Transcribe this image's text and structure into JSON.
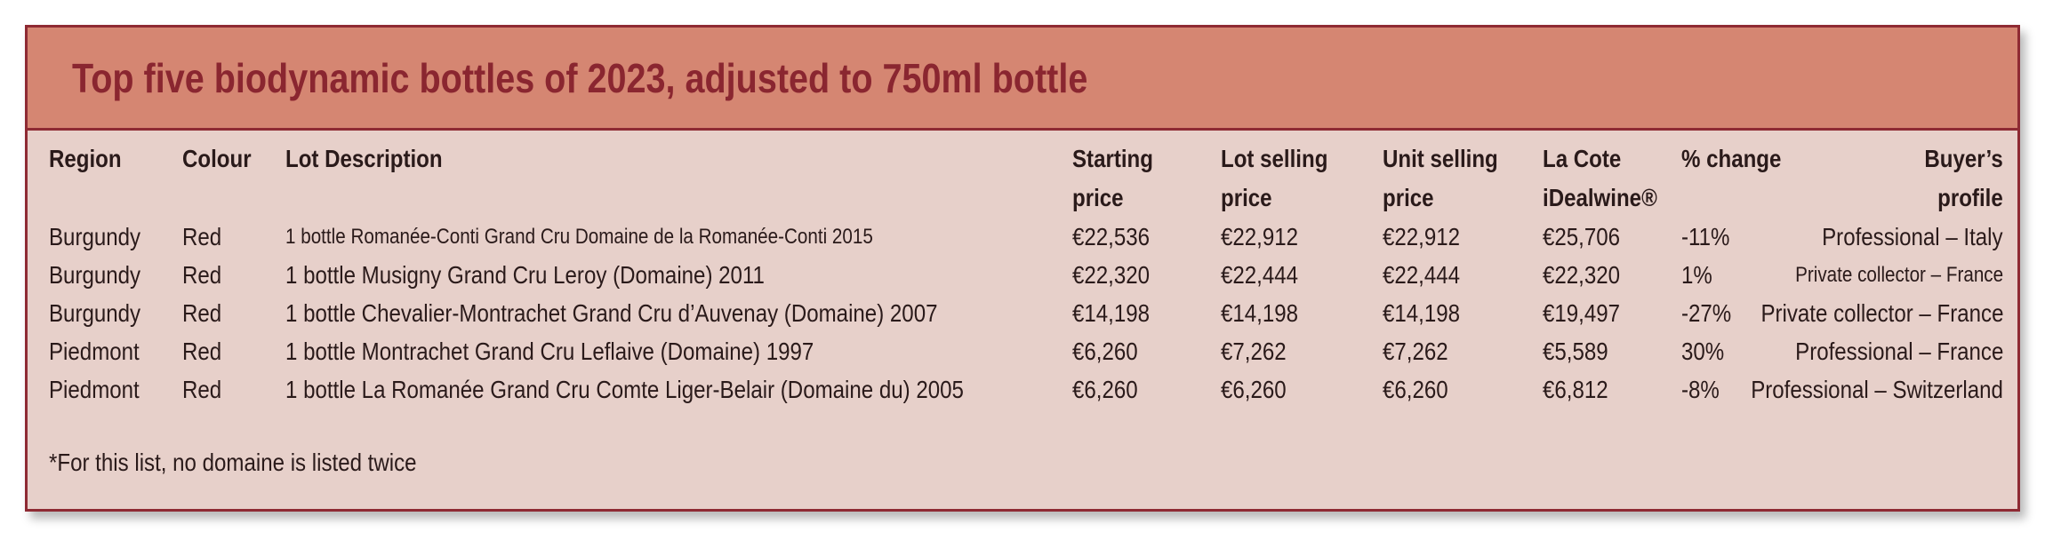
{
  "title": "Top five biodynamic bottles of 2023, adjusted to 750ml bottle",
  "colors": {
    "panel_bg": "#e7d0ca",
    "header_bg": "#d58672",
    "border": "#8e2a33",
    "title_text": "#8a2630"
  },
  "table": {
    "headers": {
      "region": "Region",
      "colour": "Colour",
      "lot_description": "Lot Description",
      "starting_price_1": "Starting",
      "starting_price_2": "price",
      "lot_selling_price_1": "Lot selling",
      "lot_selling_price_2": "price",
      "unit_selling_price_1": "Unit selling",
      "unit_selling_price_2": "price",
      "la_cote_1": "La Cote",
      "la_cote_2": "iDealwine®",
      "pct_change": "% change",
      "buyer_profile_1": "Buyer’s",
      "buyer_profile_2": "profile"
    },
    "rows": [
      {
        "region": "Burgundy",
        "colour": "Red",
        "lot_description": "1 bottle Romanée-Conti Grand Cru Domaine de la Romanée-Conti 2015",
        "starting_price": "€22,536",
        "lot_selling_price": "€22,912",
        "unit_selling_price": "€22,912",
        "la_cote": "€25,706",
        "pct_change": "-11%",
        "buyer_profile": "Professional – Italy"
      },
      {
        "region": "Burgundy",
        "colour": "Red",
        "lot_description": "1 bottle Musigny Grand Cru Leroy (Domaine) 2011",
        "starting_price": "€22,320",
        "lot_selling_price": "€22,444",
        "unit_selling_price": "€22,444",
        "la_cote": "€22,320",
        "pct_change": "1%",
        "buyer_profile": "Private collector – France"
      },
      {
        "region": "Burgundy",
        "colour": "Red",
        "lot_description": "1 bottle Chevalier-Montrachet Grand Cru d’Auvenay (Domaine) 2007",
        "starting_price": "€14,198",
        "lot_selling_price": "€14,198",
        "unit_selling_price": "€14,198",
        "la_cote": "€19,497",
        "pct_change": "-27%",
        "buyer_profile": "Private collector – France"
      },
      {
        "region": "Piedmont",
        "colour": "Red",
        "lot_description": "1 bottle Montrachet Grand Cru Leflaive (Domaine) 1997",
        "starting_price": "€6,260",
        "lot_selling_price": "€7,262",
        "unit_selling_price": "€7,262",
        "la_cote": "€5,589",
        "pct_change": "30%",
        "buyer_profile": "Professional – France"
      },
      {
        "region": "Piedmont",
        "colour": "Red",
        "lot_description": "1 bottle La Romanée Grand Cru Comte Liger-Belair (Domaine du) 2005",
        "starting_price": "€6,260",
        "lot_selling_price": "€6,260",
        "unit_selling_price": "€6,260",
        "la_cote": "€6,812",
        "pct_change": "-8%",
        "buyer_profile": "Professional – Switzerland"
      }
    ]
  },
  "footnote": "*For this list, no domaine is listed twice"
}
